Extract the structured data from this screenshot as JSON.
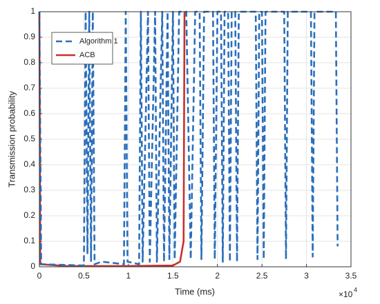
{
  "chart_data": {
    "type": "line",
    "xlabel": "Time (ms)",
    "ylabel": "Transmission probability",
    "x_multiplier_base": "×10",
    "x_multiplier_exponent": 4,
    "xlim": [
      0,
      3.5
    ],
    "xticks": [
      0,
      0.5,
      1,
      1.5,
      2,
      2.5,
      3,
      3.5
    ],
    "ylim": [
      0,
      1
    ],
    "yticks": [
      0,
      0.1,
      0.2,
      0.3,
      0.4,
      0.5,
      0.6,
      0.7,
      0.8,
      0.9,
      1
    ],
    "grid": true,
    "legend": "upper left",
    "series": [
      {
        "name": "Algorithm 1",
        "color": "#2a6ebb",
        "dashed": true,
        "x": [
          0,
          0.02,
          0.5,
          0.52,
          0.54,
          0.56,
          0.58,
          0.6,
          0.62,
          0.7,
          0.95,
          0.97,
          0.99,
          1.12,
          1.14,
          1.16,
          1.22,
          1.24,
          1.3,
          1.32,
          1.38,
          1.4,
          1.44,
          1.46,
          1.5,
          1.52,
          1.57,
          1.65,
          1.7,
          1.75,
          1.8,
          1.82,
          1.85,
          1.95,
          1.97,
          2.0,
          2.04,
          2.06,
          2.08,
          2.12,
          2.14,
          2.16,
          2.2,
          2.22,
          2.24,
          2.43,
          2.45,
          2.47,
          2.5,
          2.52,
          2.54,
          2.75,
          2.77,
          2.79,
          3.05,
          3.07,
          3.09,
          3.33,
          3.35
        ],
        "values": [
          1,
          0.01,
          0.005,
          1,
          0.05,
          1,
          0.02,
          1,
          0.01,
          0.02,
          0.01,
          1,
          0.02,
          0.01,
          1,
          0.02,
          1,
          0.02,
          1,
          0.02,
          1,
          0.02,
          1,
          0.03,
          1,
          0.03,
          1,
          1,
          0.03,
          1,
          1,
          0.03,
          1,
          1,
          0.03,
          1,
          1,
          0.02,
          1,
          1,
          0.02,
          1,
          1,
          0.02,
          1,
          1,
          0.03,
          1,
          1,
          0.03,
          1,
          1,
          0.03,
          1,
          1,
          0.04,
          1,
          1,
          0.08
        ]
      },
      {
        "name": "ACB",
        "color": "#c8302a",
        "dashed": false,
        "x": [
          0,
          0.01,
          0.3,
          1.0,
          1.5,
          1.58,
          1.62,
          1.63
        ],
        "values": [
          1,
          0.01,
          0.003,
          0.003,
          0.005,
          0.02,
          0.1,
          1
        ]
      }
    ]
  }
}
